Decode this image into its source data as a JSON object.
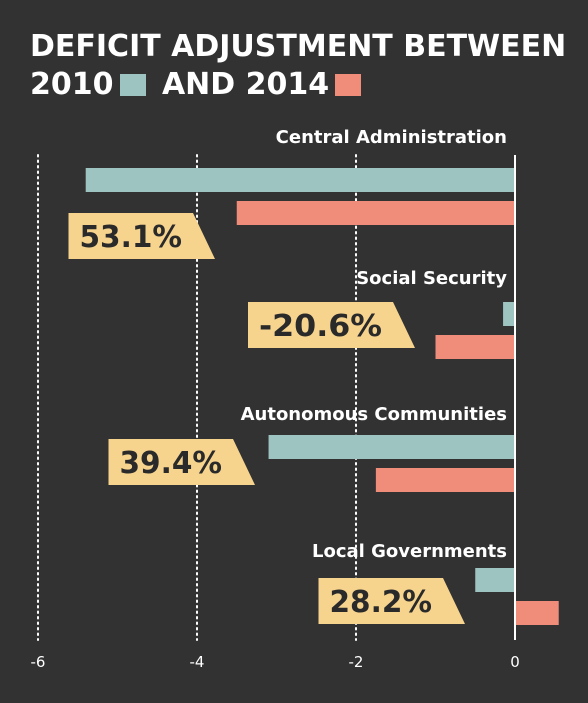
{
  "title": {
    "line1": "DEFICIT ADJUSTMENT BETWEEN",
    "year_a": "2010",
    "year_b": "AND 2014"
  },
  "colors": {
    "background": "#323232",
    "series_2010": "#9dc4c1",
    "series_2014": "#f08c7a",
    "badge": "#f6d48e",
    "badge_text": "#2a2a2a",
    "grid": "#ffffff"
  },
  "chart_data": {
    "type": "bar",
    "orientation": "horizontal",
    "title": "DEFICIT ADJUSTMENT BETWEEN 2010 AND 2014",
    "categories": [
      "Central Administration",
      "Social Security",
      "Autonomous Communities",
      "Local Governments"
    ],
    "series": [
      {
        "name": "2010",
        "values": [
          -5.4,
          -0.15,
          -3.1,
          -0.5
        ]
      },
      {
        "name": "2014",
        "values": [
          -3.5,
          -1.0,
          -1.75,
          0.55
        ]
      }
    ],
    "annotations": [
      "53.1%",
      "-20.6%",
      "39.4%",
      "28.2%"
    ],
    "xlim": [
      -6,
      0.6
    ],
    "xticks": [
      -6,
      -4,
      -2,
      0
    ],
    "xtick_labels": [
      "-6",
      "-4",
      "-2",
      "0"
    ],
    "grid": true,
    "legend": "title"
  }
}
